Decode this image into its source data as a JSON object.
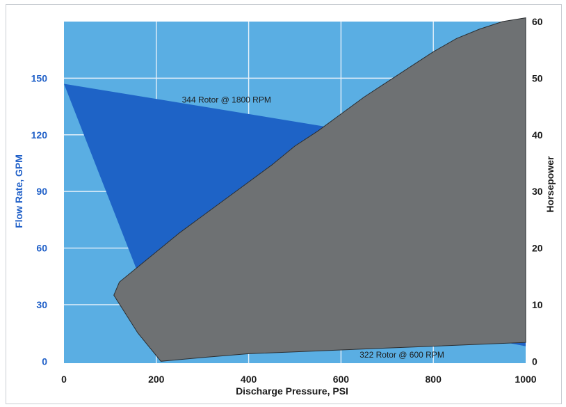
{
  "chart_data": {
    "type": "area",
    "xlabel": "Discharge Pressure, PSI",
    "ylabel_left": "Flow Rate, GPM",
    "ylabel_right": "Horsepower",
    "x_ticks": [
      0,
      200,
      400,
      600,
      800,
      1000
    ],
    "y_left_ticks": [
      0,
      30,
      60,
      90,
      120,
      150
    ],
    "y_right_ticks": [
      0,
      10,
      20,
      30,
      40,
      50,
      60
    ],
    "xlim": [
      0,
      1000
    ],
    "y_left_lim": [
      -1,
      180
    ],
    "y_right_lim": [
      -0.33,
      60
    ],
    "grid": true,
    "annotations": [
      {
        "text": "344 Rotor @ 1800 RPM",
        "x": 352,
        "y": 137
      },
      {
        "text": "322 Rotor @ 600 RPM",
        "x": 732,
        "y": 2
      }
    ],
    "series": [
      {
        "color": "#1e63c6",
        "points": [
          [
            0,
            147
          ],
          [
            550,
            125
          ],
          [
            1000,
            106
          ],
          [
            1000,
            8
          ],
          [
            160,
            47
          ],
          [
            0,
            147
          ]
        ]
      },
      {
        "color": "#6e7173",
        "points": [
          [
            108,
            35
          ],
          [
            120,
            42
          ],
          [
            160,
            50
          ],
          [
            200,
            58
          ],
          [
            250,
            68
          ],
          [
            300,
            77
          ],
          [
            350,
            86
          ],
          [
            400,
            95
          ],
          [
            450,
            104
          ],
          [
            500,
            114
          ],
          [
            550,
            122
          ],
          [
            600,
            131
          ],
          [
            650,
            140
          ],
          [
            700,
            148
          ],
          [
            750,
            156
          ],
          [
            800,
            164
          ],
          [
            850,
            171
          ],
          [
            900,
            176
          ],
          [
            950,
            180
          ],
          [
            1000,
            182
          ],
          [
            1000,
            10
          ],
          [
            900,
            9
          ],
          [
            800,
            8
          ],
          [
            700,
            7
          ],
          [
            600,
            6
          ],
          [
            500,
            5
          ],
          [
            400,
            4
          ],
          [
            300,
            2
          ],
          [
            210,
            0
          ],
          [
            160,
            15
          ],
          [
            108,
            35
          ]
        ]
      }
    ]
  },
  "colors": {
    "background": "#5aaee3",
    "grid": "#e6f1fa",
    "left_axis_text": "#2060c8",
    "right_axis_text": "#1c1c1c"
  }
}
